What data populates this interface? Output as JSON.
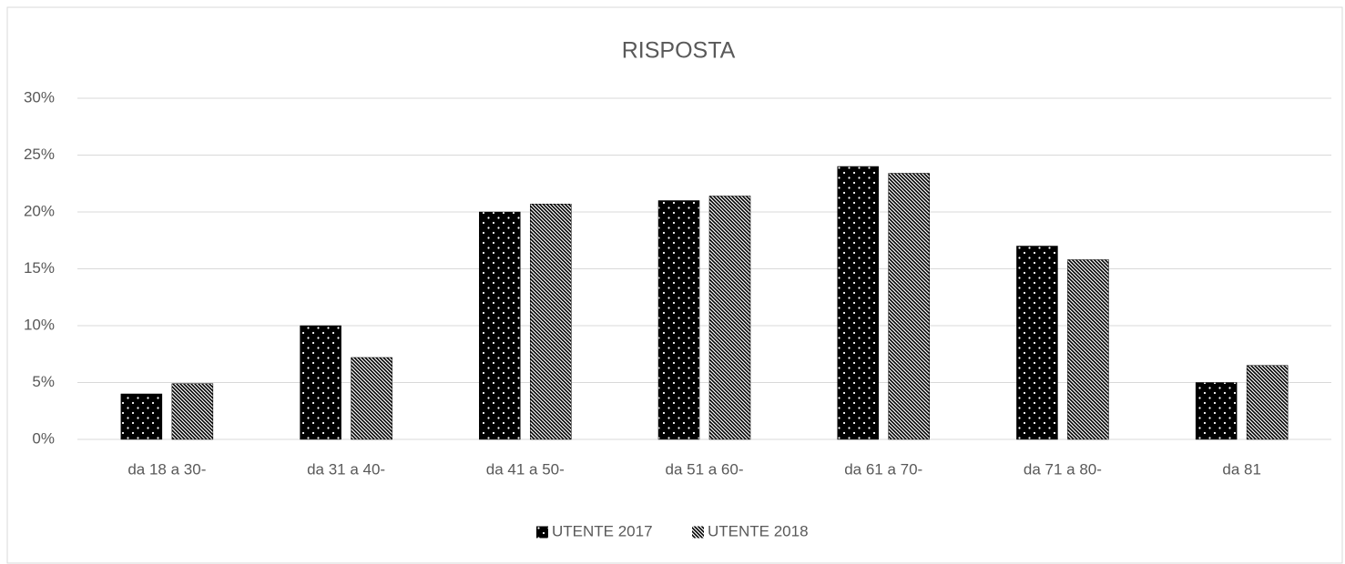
{
  "chart_data": {
    "type": "bar",
    "title": "RISPOSTA",
    "categories": [
      "da 18 a 30-",
      "da 31 a 40-",
      "da 41 a 50-",
      "da 51 a 60-",
      "da 61 a 70-",
      "da 71 a 80-",
      "da 81"
    ],
    "series": [
      {
        "name": "UTENTE 2017",
        "color": "#000000",
        "pattern": "dots",
        "values": [
          4,
          10,
          20,
          21,
          24,
          17,
          5
        ]
      },
      {
        "name": "UTENTE 2018",
        "color": "#000000",
        "pattern": "diagonal",
        "values": [
          4.9,
          7.2,
          20.7,
          21.4,
          23.4,
          15.8,
          6.5
        ]
      }
    ],
    "ylim": [
      0,
      30
    ],
    "yticks": [
      {
        "value": 0,
        "label": "0%"
      },
      {
        "value": 5,
        "label": "5%"
      },
      {
        "value": 10,
        "label": "10%"
      },
      {
        "value": 15,
        "label": "15%"
      },
      {
        "value": 20,
        "label": "20%"
      },
      {
        "value": 25,
        "label": "25%"
      },
      {
        "value": 30,
        "label": "30%"
      }
    ],
    "grid": true,
    "legend": "bottom"
  }
}
